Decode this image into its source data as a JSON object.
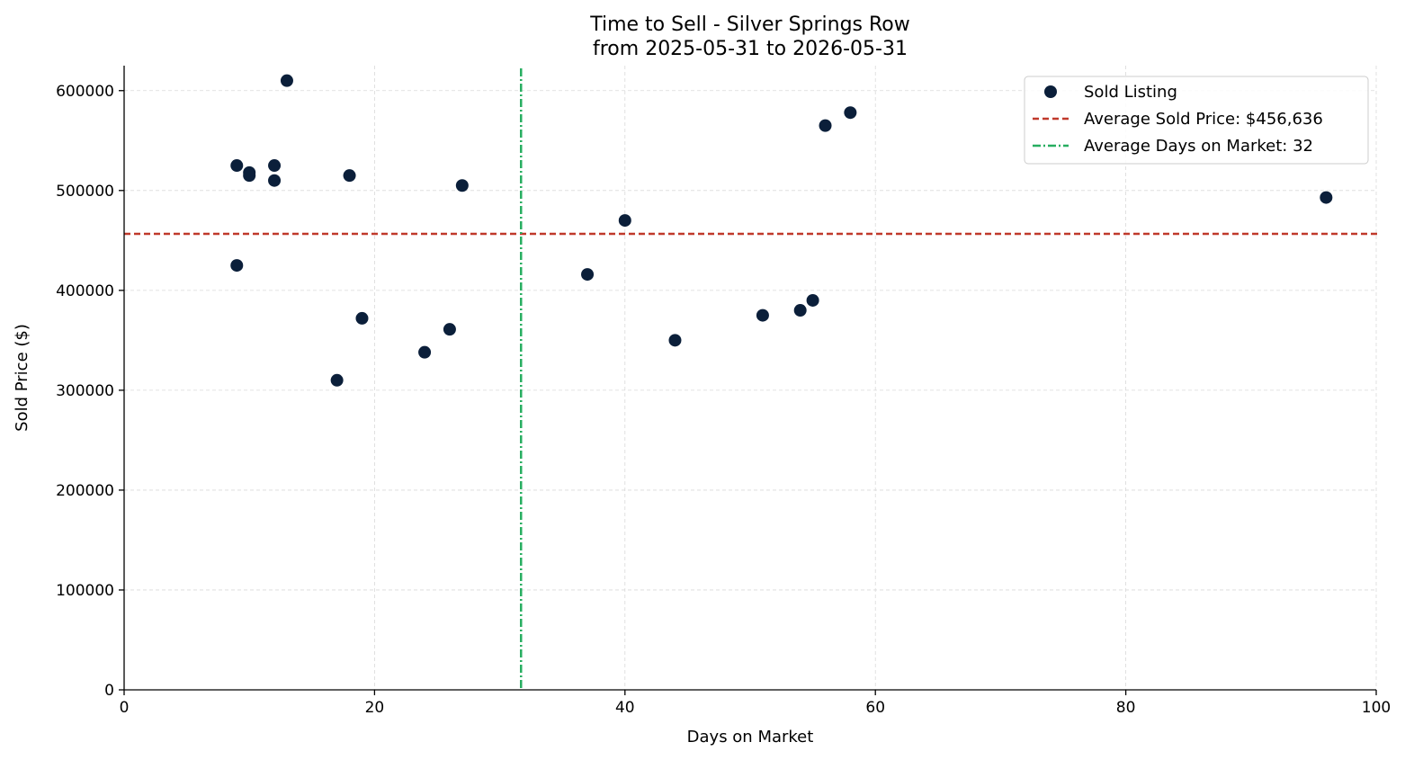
{
  "chart_data": {
    "type": "scatter",
    "title": "Time to Sell - Silver Springs Row",
    "subtitle": "from 2025-05-31 to 2026-05-31",
    "xlabel": "Days on Market",
    "ylabel": "Sold Price ($)",
    "xlim": [
      0,
      100
    ],
    "ylim": [
      0,
      625000
    ],
    "xticks": [
      0,
      20,
      40,
      60,
      80,
      100
    ],
    "yticks": [
      0,
      100000,
      200000,
      300000,
      400000,
      500000,
      600000
    ],
    "grid": true,
    "legend_position": "top-right",
    "colors": {
      "points": "#0b1f3a",
      "avg_price_line": "#c0392b",
      "avg_days_line": "#27ae60"
    },
    "series": [
      {
        "name": "Sold Listing",
        "points": [
          {
            "x": 9,
            "y": 525000
          },
          {
            "x": 9,
            "y": 425000
          },
          {
            "x": 10,
            "y": 518000
          },
          {
            "x": 10,
            "y": 515000
          },
          {
            "x": 12,
            "y": 525000
          },
          {
            "x": 12,
            "y": 510000
          },
          {
            "x": 13,
            "y": 610000
          },
          {
            "x": 17,
            "y": 310000
          },
          {
            "x": 18,
            "y": 515000
          },
          {
            "x": 19,
            "y": 372000
          },
          {
            "x": 24,
            "y": 338000
          },
          {
            "x": 26,
            "y": 361000
          },
          {
            "x": 27,
            "y": 505000
          },
          {
            "x": 37,
            "y": 416000
          },
          {
            "x": 40,
            "y": 470000
          },
          {
            "x": 44,
            "y": 350000
          },
          {
            "x": 51,
            "y": 375000
          },
          {
            "x": 54,
            "y": 380000
          },
          {
            "x": 55,
            "y": 390000
          },
          {
            "x": 56,
            "y": 565000
          },
          {
            "x": 58,
            "y": 578000
          },
          {
            "x": 96,
            "y": 493000
          }
        ]
      }
    ],
    "reference_lines": [
      {
        "name": "Average Sold Price: $456,636",
        "orientation": "horizontal",
        "value": 456636,
        "style": "dashed"
      },
      {
        "name": "Average Days on Market: 32",
        "orientation": "vertical",
        "value": 31.7,
        "style": "dashdot"
      }
    ]
  }
}
